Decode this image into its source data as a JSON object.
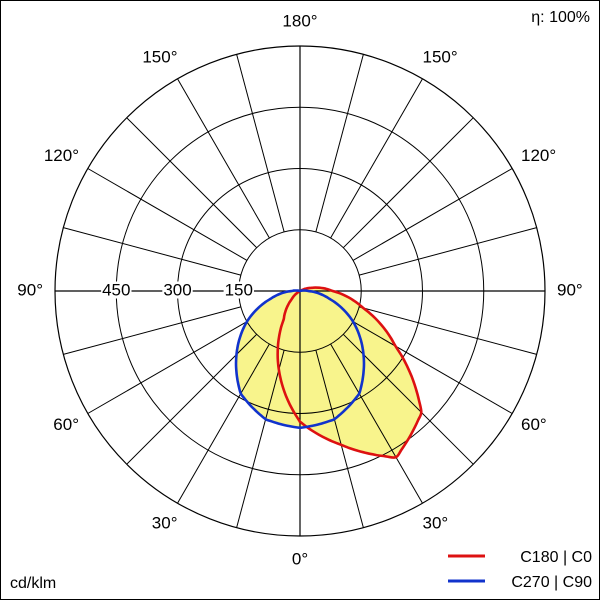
{
  "chart_data": {
    "type": "polar",
    "efficiency_label": "η: 100%",
    "unit_label": "cd/klm",
    "radial_ticks": [
      150,
      300,
      450
    ],
    "radial_max": 600,
    "angle_labels": {
      "left": [
        "180°",
        "150°",
        "120°",
        "90°",
        "60°",
        "30°",
        "0°"
      ],
      "right": [
        "150°",
        "120°",
        "90°",
        "60°",
        "30°"
      ]
    },
    "series": [
      {
        "name": "C180 | C0",
        "color": "#dd1111",
        "samples_deg": [
          0,
          15,
          30,
          45,
          60,
          75,
          90,
          105,
          120,
          135,
          150,
          165,
          180
        ],
        "right_cdklm": [
          320,
          390,
          470,
          420,
          270,
          160,
          80,
          30,
          0,
          0,
          0,
          0,
          0
        ],
        "left_cdklm": [
          320,
          200,
          80,
          30,
          0,
          0,
          0,
          0,
          0,
          0,
          0,
          0,
          0
        ]
      },
      {
        "name": "C270 | C90",
        "color": "#1133cc",
        "samples_deg": [
          0,
          15,
          30,
          45,
          60,
          75,
          90,
          105,
          120,
          135,
          150,
          165,
          180
        ],
        "right_cdklm": [
          335,
          325,
          290,
          220,
          150,
          75,
          20,
          0,
          0,
          0,
          0,
          0,
          0
        ],
        "left_cdklm": [
          335,
          325,
          290,
          220,
          150,
          75,
          20,
          0,
          0,
          0,
          0,
          0,
          0
        ]
      }
    ],
    "fill_color": "#f8f48c",
    "grid": true,
    "legend_position": "bottom-right"
  }
}
